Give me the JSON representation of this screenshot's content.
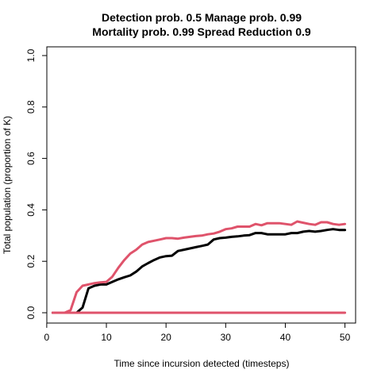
{
  "chart_data": {
    "type": "line",
    "title": "Detection prob. 0.5 Manage prob. 0.99",
    "subtitle": "Mortality prob. 0.99 Spread Reduction 0.9",
    "xlabel": "Time since incursion detected (timesteps)",
    "ylabel": "Total population (proportion of K)",
    "xlim": [
      1,
      50
    ],
    "ylim": [
      0,
      1
    ],
    "x_ticks": [
      0,
      10,
      20,
      30,
      40,
      50
    ],
    "y_ticks": [
      0.0,
      0.2,
      0.4,
      0.6,
      0.8,
      1.0
    ],
    "y_tick_labels": [
      "0.0",
      "0.2",
      "0.4",
      "0.6",
      "0.8",
      "1.0"
    ],
    "grid": false,
    "legend": "none",
    "series": [
      {
        "color": "#000000",
        "x": [
          1,
          2,
          3,
          4,
          5,
          6,
          7,
          8,
          9,
          10,
          11,
          12,
          13,
          14,
          15,
          16,
          17,
          18,
          19,
          20,
          21,
          22,
          23,
          24,
          25,
          26,
          27,
          28,
          29,
          30,
          31,
          32,
          33,
          34,
          35,
          36,
          37,
          38,
          39,
          40,
          41,
          42,
          43,
          44,
          45,
          46,
          47,
          48,
          49,
          50
        ],
        "y": [
          0,
          0,
          0,
          0,
          0,
          0.02,
          0.095,
          0.105,
          0.11,
          0.11,
          0.12,
          0.13,
          0.138,
          0.145,
          0.16,
          0.18,
          0.193,
          0.205,
          0.215,
          0.22,
          0.222,
          0.24,
          0.245,
          0.25,
          0.255,
          0.26,
          0.265,
          0.285,
          0.29,
          0.292,
          0.295,
          0.297,
          0.3,
          0.302,
          0.31,
          0.31,
          0.305,
          0.305,
          0.305,
          0.305,
          0.31,
          0.31,
          0.315,
          0.318,
          0.315,
          0.318,
          0.322,
          0.325,
          0.322,
          0.322
        ]
      },
      {
        "color": "#DF536B",
        "x": [
          1,
          2,
          3,
          4,
          5,
          6,
          7,
          8,
          9,
          10,
          11,
          12,
          13,
          14,
          15,
          16,
          17,
          18,
          19,
          20,
          21,
          22,
          23,
          24,
          25,
          26,
          27,
          28,
          29,
          30,
          31,
          32,
          33,
          34,
          35,
          36,
          37,
          38,
          39,
          40,
          41,
          42,
          43,
          44,
          45,
          46,
          47,
          48,
          49,
          50
        ],
        "y": [
          0,
          0,
          0,
          0.01,
          0.08,
          0.105,
          0.11,
          0.115,
          0.118,
          0.12,
          0.14,
          0.175,
          0.205,
          0.23,
          0.245,
          0.265,
          0.275,
          0.28,
          0.285,
          0.29,
          0.29,
          0.288,
          0.292,
          0.295,
          0.298,
          0.3,
          0.305,
          0.308,
          0.315,
          0.325,
          0.328,
          0.335,
          0.335,
          0.335,
          0.345,
          0.34,
          0.348,
          0.348,
          0.348,
          0.345,
          0.342,
          0.355,
          0.35,
          0.345,
          0.342,
          0.352,
          0.352,
          0.345,
          0.342,
          0.345
        ]
      },
      {
        "color": "#DF536B",
        "x": [
          1,
          50
        ],
        "y": [
          0,
          0
        ]
      }
    ]
  }
}
